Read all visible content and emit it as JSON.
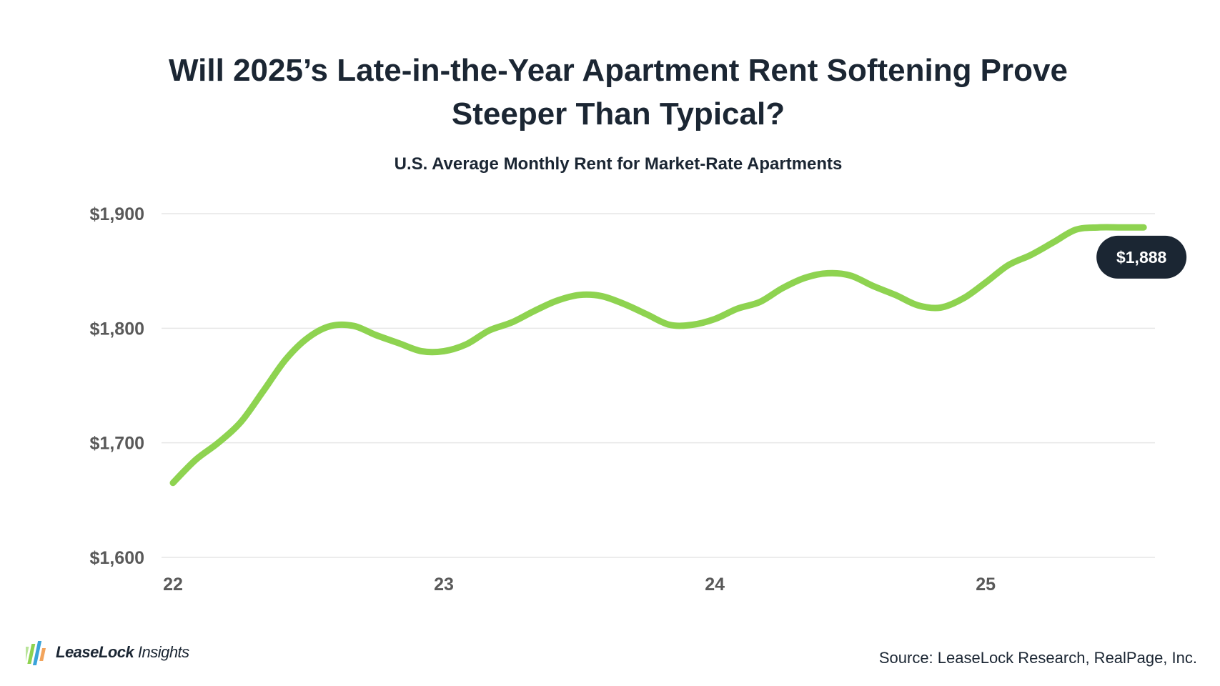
{
  "title_line1": "Will 2025’s Late-in-the-Year Apartment Rent Softening Prove",
  "title_line2": "Steeper Than Typical?",
  "subtitle": "U.S. Average Monthly Rent for Market-Rate Apartments",
  "source": "Source: LeaseLock Research, RealPage, Inc.",
  "logo": {
    "brand": "LeaseLock",
    "suffix": " Insights",
    "icon": "bar-stripes-logo-icon"
  },
  "colors": {
    "line": "#8ed350",
    "grid": "#e6e6e6",
    "axis_text": "#595959",
    "callout_bg": "#1b2633",
    "callout_text": "#ffffff"
  },
  "chart_data": {
    "type": "line",
    "ylim": [
      1600,
      1900
    ],
    "yticks": [
      1600,
      1700,
      1800,
      1900
    ],
    "ytick_labels": [
      "$1,600",
      "$1,700",
      "$1,800",
      "$1,900"
    ],
    "xticks": [
      2022,
      2023,
      2024,
      2025
    ],
    "xtick_labels": [
      "22",
      "23",
      "24",
      "25"
    ],
    "xlim": [
      2022,
      2025.667
    ],
    "grid": true,
    "callout_label": "$1,888",
    "series": [
      {
        "x": [
          2022.0,
          2022.083,
          2022.167,
          2022.25,
          2022.333,
          2022.417,
          2022.5,
          2022.583,
          2022.667,
          2022.75,
          2022.833,
          2022.917,
          2023.0,
          2023.083,
          2023.167,
          2023.25,
          2023.333,
          2023.417,
          2023.5,
          2023.583,
          2023.667,
          2023.75,
          2023.833,
          2023.917,
          2024.0,
          2024.083,
          2024.167,
          2024.25,
          2024.333,
          2024.417,
          2024.5,
          2024.583,
          2024.667,
          2024.75,
          2024.833,
          2024.917,
          2025.0,
          2025.083,
          2025.167,
          2025.25,
          2025.333,
          2025.417,
          2025.5,
          2025.583
        ],
        "values": [
          1665,
          1685,
          1700,
          1718,
          1745,
          1773,
          1792,
          1802,
          1802,
          1794,
          1787,
          1780,
          1780,
          1786,
          1798,
          1805,
          1815,
          1824,
          1829,
          1828,
          1821,
          1812,
          1803,
          1803,
          1808,
          1817,
          1823,
          1835,
          1844,
          1848,
          1846,
          1837,
          1829,
          1820,
          1818,
          1826,
          1840,
          1855,
          1864,
          1875,
          1886,
          1888,
          1888,
          1888
        ]
      }
    ]
  }
}
